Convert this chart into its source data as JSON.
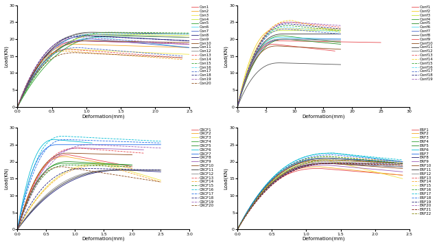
{
  "subplots": [
    {
      "xlabel": "Deformation(mm)",
      "ylabel": "Load(KN)",
      "xlim": [
        0,
        2.5
      ],
      "ylim": [
        0,
        30
      ],
      "xticks": [
        0,
        0.5,
        1.0,
        1.5,
        2.0,
        2.5
      ],
      "yticks": [
        0,
        5,
        10,
        15,
        20,
        25,
        30
      ],
      "series": [
        {
          "label": "Con1",
          "color": "#e8474c",
          "ls": "-",
          "peak_x": 0.95,
          "peak_y": 19.5,
          "end_x": 2.5,
          "end_y": 18.5
        },
        {
          "label": "Con2",
          "color": "#f5a623",
          "ls": "-",
          "peak_x": 0.85,
          "peak_y": 18.5,
          "end_x": 2.5,
          "end_y": 17.5
        },
        {
          "label": "Con3",
          "color": "#f0e442",
          "ls": "-",
          "peak_x": 0.8,
          "peak_y": 17.0,
          "end_x": 2.5,
          "end_y": 15.5
        },
        {
          "label": "Con4",
          "color": "#c8e632",
          "ls": "-",
          "peak_x": 1.3,
          "peak_y": 21.5,
          "end_x": 2.5,
          "end_y": 21.0
        },
        {
          "label": "Con5",
          "color": "#2ca02c",
          "ls": "-",
          "peak_x": 1.4,
          "peak_y": 21.0,
          "end_x": 2.5,
          "end_y": 20.5
        },
        {
          "label": "Con6",
          "color": "#4dd8f0",
          "ls": "-",
          "peak_x": 1.2,
          "peak_y": 20.5,
          "end_x": 2.5,
          "end_y": 17.5
        },
        {
          "label": "Con7",
          "color": "#4466cc",
          "ls": "-",
          "peak_x": 1.1,
          "peak_y": 20.0,
          "end_x": 2.5,
          "end_y": 17.5
        },
        {
          "label": "Con8",
          "color": "#1a1a7a",
          "ls": "-",
          "peak_x": 1.05,
          "peak_y": 21.0,
          "end_x": 2.5,
          "end_y": 19.5
        },
        {
          "label": "Con9",
          "color": "#9b59b6",
          "ls": "-",
          "peak_x": 0.9,
          "peak_y": 19.5,
          "end_x": 2.5,
          "end_y": 18.5
        },
        {
          "label": "Con10",
          "color": "#8b4513",
          "ls": "-",
          "peak_x": 1.05,
          "peak_y": 19.5,
          "end_x": 2.5,
          "end_y": 19.0
        },
        {
          "label": "Con11",
          "color": "#333333",
          "ls": "-",
          "peak_x": 1.1,
          "peak_y": 22.0,
          "end_x": 2.5,
          "end_y": 21.5
        },
        {
          "label": "Con12",
          "color": "#888888",
          "ls": "-",
          "peak_x": 1.0,
          "peak_y": 21.5,
          "end_x": 2.5,
          "end_y": 20.5
        },
        {
          "label": "Con13",
          "color": "#e8474c",
          "ls": "--",
          "peak_x": 0.75,
          "peak_y": 17.0,
          "end_x": 2.4,
          "end_y": 14.5
        },
        {
          "label": "Con14",
          "color": "#f5a623",
          "ls": "--",
          "peak_x": 0.7,
          "peak_y": 16.5,
          "end_x": 2.4,
          "end_y": 14.0
        },
        {
          "label": "Con15",
          "color": "#2ca02c",
          "ls": "--",
          "peak_x": 1.35,
          "peak_y": 22.0,
          "end_x": 2.5,
          "end_y": 21.8
        },
        {
          "label": "Con16",
          "color": "#4dd8f0",
          "ls": "--",
          "peak_x": 1.15,
          "peak_y": 21.5,
          "end_x": 2.5,
          "end_y": 21.5
        },
        {
          "label": "Con17",
          "color": "#4466cc",
          "ls": "--",
          "peak_x": 0.9,
          "peak_y": 17.5,
          "end_x": 2.4,
          "end_y": 15.0
        },
        {
          "label": "Con18",
          "color": "#1a1a7a",
          "ls": "--",
          "peak_x": 0.95,
          "peak_y": 21.0,
          "end_x": 2.5,
          "end_y": 19.5
        },
        {
          "label": "Con19",
          "color": "#9b59b6",
          "ls": "--",
          "peak_x": 0.9,
          "peak_y": 20.5,
          "end_x": 2.5,
          "end_y": 18.5
        },
        {
          "label": "Con20",
          "color": "#8b4513",
          "ls": "--",
          "peak_x": 0.85,
          "peak_y": 16.0,
          "end_x": 2.4,
          "end_y": 14.5
        }
      ]
    },
    {
      "xlabel": "Deformation(mm)",
      "ylabel": "Load(KN)",
      "xlim": [
        0,
        30
      ],
      "ylim": [
        0,
        30
      ],
      "xticks": [
        0,
        5,
        10,
        15,
        20,
        25,
        30
      ],
      "yticks": [
        0,
        5,
        10,
        15,
        20,
        25,
        30
      ],
      "series": [
        {
          "label": "Conf1",
          "color": "#e8474c",
          "ls": "-",
          "peak_x": 7.0,
          "peak_y": 19.5,
          "end_x": 25.0,
          "end_y": 19.0
        },
        {
          "label": "Conf2",
          "color": "#f5d020",
          "ls": "-",
          "peak_x": 7.0,
          "peak_y": 23.0,
          "end_x": 18.0,
          "end_y": 23.0
        },
        {
          "label": "Conf3",
          "color": "#c8e632",
          "ls": "-",
          "peak_x": 7.5,
          "peak_y": 22.5,
          "end_x": 18.0,
          "end_y": 22.5
        },
        {
          "label": "Conf4",
          "color": "#2ca02c",
          "ls": "-",
          "peak_x": 8.0,
          "peak_y": 21.0,
          "end_x": 18.0,
          "end_y": 19.0
        },
        {
          "label": "Conf5",
          "color": "#228b22",
          "ls": "-",
          "peak_x": 8.5,
          "peak_y": 20.0,
          "end_x": 18.0,
          "end_y": 18.5
        },
        {
          "label": "Conf6",
          "color": "#4dd8f0",
          "ls": "-",
          "peak_x": 7.5,
          "peak_y": 20.5,
          "end_x": 18.0,
          "end_y": 20.0
        },
        {
          "label": "Conf7",
          "color": "#4466cc",
          "ls": "-",
          "peak_x": 8.0,
          "peak_y": 20.0,
          "end_x": 18.0,
          "end_y": 20.0
        },
        {
          "label": "Conf8",
          "color": "#555555",
          "ls": "-",
          "peak_x": 7.5,
          "peak_y": 13.0,
          "end_x": 18.0,
          "end_y": 12.5
        },
        {
          "label": "Conf9",
          "color": "#e8474c",
          "ls": "-",
          "peak_x": 6.5,
          "peak_y": 18.5,
          "end_x": 17.0,
          "end_y": 16.5
        },
        {
          "label": "Conf10",
          "color": "#8b4513",
          "ls": "-",
          "peak_x": 7.0,
          "peak_y": 18.0,
          "end_x": 18.0,
          "end_y": 17.0
        },
        {
          "label": "Conf11",
          "color": "#333333",
          "ls": "-",
          "peak_x": 8.0,
          "peak_y": 21.5,
          "end_x": 18.0,
          "end_y": 21.5
        },
        {
          "label": "Conf12",
          "color": "#888888",
          "ls": "-",
          "peak_x": 7.5,
          "peak_y": 20.0,
          "end_x": 18.0,
          "end_y": 19.5
        },
        {
          "label": "Conf13",
          "color": "#e8474c",
          "ls": "--",
          "peak_x": 9.0,
          "peak_y": 25.0,
          "end_x": 18.0,
          "end_y": 23.5
        },
        {
          "label": "Conf14",
          "color": "#f5d020",
          "ls": "--",
          "peak_x": 9.5,
          "peak_y": 25.5,
          "end_x": 18.0,
          "end_y": 22.0
        },
        {
          "label": "Conf15",
          "color": "#2ca02c",
          "ls": "--",
          "peak_x": 9.0,
          "peak_y": 24.0,
          "end_x": 18.0,
          "end_y": 22.5
        },
        {
          "label": "Conf16",
          "color": "#4dd8f0",
          "ls": "--",
          "peak_x": 8.5,
          "peak_y": 23.5,
          "end_x": 18.0,
          "end_y": 22.0
        },
        {
          "label": "Conf17",
          "color": "#4466cc",
          "ls": "--",
          "peak_x": 8.5,
          "peak_y": 23.0,
          "end_x": 18.0,
          "end_y": 21.5
        },
        {
          "label": "Conf18",
          "color": "#1a1a7a",
          "ls": "--",
          "peak_x": 9.0,
          "peak_y": 24.5,
          "end_x": 18.0,
          "end_y": 23.0
        },
        {
          "label": "Conf19",
          "color": "#9b59b6",
          "ls": "--",
          "peak_x": 9.5,
          "peak_y": 25.0,
          "end_x": 18.0,
          "end_y": 24.0
        }
      ]
    },
    {
      "xlabel": "Deformation(mm)",
      "ylabel": "Load(KN)",
      "xlim": [
        0,
        3
      ],
      "ylim": [
        0,
        30
      ],
      "xticks": [
        0,
        0.5,
        1.0,
        1.5,
        2.0,
        2.5,
        3.0
      ],
      "yticks": [
        0,
        5,
        10,
        15,
        20,
        25,
        30
      ],
      "series": [
        {
          "label": "CRCF1",
          "color": "#e8474c",
          "ls": "-",
          "peak_x": 0.9,
          "peak_y": 22.0,
          "end_x": 2.0,
          "end_y": 18.5
        },
        {
          "label": "CRCF2",
          "color": "#f5a623",
          "ls": "-",
          "peak_x": 0.85,
          "peak_y": 21.5,
          "end_x": 2.0,
          "end_y": 18.0
        },
        {
          "label": "CRCF3",
          "color": "#f0e442",
          "ls": "-",
          "peak_x": 1.5,
          "peak_y": 19.5,
          "end_x": 2.5,
          "end_y": 14.5
        },
        {
          "label": "CRCF4",
          "color": "#2ca02c",
          "ls": "-",
          "peak_x": 0.85,
          "peak_y": 19.5,
          "end_x": 2.0,
          "end_y": 19.0
        },
        {
          "label": "CRCF5",
          "color": "#228b22",
          "ls": "-",
          "peak_x": 0.9,
          "peak_y": 20.0,
          "end_x": 2.0,
          "end_y": 19.0
        },
        {
          "label": "CRCF6",
          "color": "#00bcd4",
          "ls": "-",
          "peak_x": 0.65,
          "peak_y": 26.5,
          "end_x": 1.3,
          "end_y": 25.5
        },
        {
          "label": "CRCF7",
          "color": "#1a6ae8",
          "ls": "-",
          "peak_x": 0.7,
          "peak_y": 25.0,
          "end_x": 2.5,
          "end_y": 25.0
        },
        {
          "label": "CRCF8",
          "color": "#1a1a7a",
          "ls": "-",
          "peak_x": 1.9,
          "peak_y": 17.5,
          "end_x": 2.5,
          "end_y": 17.0
        },
        {
          "label": "CRCF9",
          "color": "#9b59b6",
          "ls": "-",
          "peak_x": 1.1,
          "peak_y": 24.0,
          "end_x": 2.2,
          "end_y": 23.5
        },
        {
          "label": "CRCF10",
          "color": "#8b4513",
          "ls": "-",
          "peak_x": 0.9,
          "peak_y": 22.5,
          "end_x": 2.0,
          "end_y": 22.0
        },
        {
          "label": "CRCF11",
          "color": "#333333",
          "ls": "-",
          "peak_x": 1.8,
          "peak_y": 17.5,
          "end_x": 2.5,
          "end_y": 17.5
        },
        {
          "label": "CRCF12",
          "color": "#888888",
          "ls": "-",
          "peak_x": 1.7,
          "peak_y": 17.5,
          "end_x": 2.5,
          "end_y": 17.5
        },
        {
          "label": "CRCF13",
          "color": "#e8474c",
          "ls": "--",
          "peak_x": 1.05,
          "peak_y": 24.0,
          "end_x": 2.2,
          "end_y": 22.5
        },
        {
          "label": "CRCF14",
          "color": "#f5a623",
          "ls": "--",
          "peak_x": 1.5,
          "peak_y": 19.0,
          "end_x": 2.5,
          "end_y": 14.0
        },
        {
          "label": "CRCF15",
          "color": "#228b22",
          "ls": "--",
          "peak_x": 0.9,
          "peak_y": 19.0,
          "end_x": 2.0,
          "end_y": 18.5
        },
        {
          "label": "CRCF16",
          "color": "#00bcd4",
          "ls": "--",
          "peak_x": 0.8,
          "peak_y": 27.5,
          "end_x": 2.5,
          "end_y": 26.0
        },
        {
          "label": "CRCF17",
          "color": "#1a6ae8",
          "ls": "--",
          "peak_x": 0.85,
          "peak_y": 26.5,
          "end_x": 2.5,
          "end_y": 25.5
        },
        {
          "label": "CRCF18",
          "color": "#1a1a7a",
          "ls": "--",
          "peak_x": 1.2,
          "peak_y": 18.0,
          "end_x": 2.5,
          "end_y": 17.5
        },
        {
          "label": "CRCF19",
          "color": "#9b59b6",
          "ls": "--",
          "peak_x": 1.3,
          "peak_y": 25.0,
          "end_x": 2.5,
          "end_y": 24.0
        },
        {
          "label": "CRCF20",
          "color": "#8b4513",
          "ls": "--",
          "peak_x": 0.8,
          "peak_y": 18.5,
          "end_x": 2.5,
          "end_y": 14.0
        }
      ]
    },
    {
      "xlabel": "Deformation(mm)",
      "ylabel": "Load(KN)",
      "xlim": [
        0,
        2.5
      ],
      "ylim": [
        0,
        30
      ],
      "xticks": [
        0,
        0.5,
        1.0,
        1.5,
        2.0,
        2.5
      ],
      "yticks": [
        0,
        5,
        10,
        15,
        20,
        25,
        30
      ],
      "series": [
        {
          "label": "ERF1",
          "color": "#e8474c",
          "ls": "-",
          "peak_x": 1.2,
          "peak_y": 18.0,
          "end_x": 2.4,
          "end_y": 16.0
        },
        {
          "label": "ERF2",
          "color": "#f5a623",
          "ls": "-",
          "peak_x": 1.2,
          "peak_y": 18.5,
          "end_x": 2.4,
          "end_y": 16.0
        },
        {
          "label": "ERF3",
          "color": "#f0e442",
          "ls": "-",
          "peak_x": 1.3,
          "peak_y": 20.5,
          "end_x": 2.4,
          "end_y": 15.0
        },
        {
          "label": "ERF4",
          "color": "#2ca02c",
          "ls": "-",
          "peak_x": 1.3,
          "peak_y": 20.0,
          "end_x": 2.4,
          "end_y": 19.0
        },
        {
          "label": "ERF5",
          "color": "#228b22",
          "ls": "-",
          "peak_x": 1.3,
          "peak_y": 20.5,
          "end_x": 2.4,
          "end_y": 19.5
        },
        {
          "label": "ERF6",
          "color": "#00bcd4",
          "ls": "-",
          "peak_x": 1.4,
          "peak_y": 22.5,
          "end_x": 2.4,
          "end_y": 20.0
        },
        {
          "label": "ERF7",
          "color": "#1a6ae8",
          "ls": "-",
          "peak_x": 1.3,
          "peak_y": 21.0,
          "end_x": 2.4,
          "end_y": 20.0
        },
        {
          "label": "ERF8",
          "color": "#191970",
          "ls": "-",
          "peak_x": 1.3,
          "peak_y": 19.5,
          "end_x": 2.4,
          "end_y": 18.5
        },
        {
          "label": "ERF9",
          "color": "#9b59b6",
          "ls": "-",
          "peak_x": 1.3,
          "peak_y": 19.0,
          "end_x": 2.4,
          "end_y": 17.0
        },
        {
          "label": "ERF10",
          "color": "#8b4513",
          "ls": "-",
          "peak_x": 1.3,
          "peak_y": 19.5,
          "end_x": 2.4,
          "end_y": 18.0
        },
        {
          "label": "ERF11",
          "color": "#333333",
          "ls": "-",
          "peak_x": 1.35,
          "peak_y": 21.0,
          "end_x": 2.4,
          "end_y": 19.5
        },
        {
          "label": "ERF12",
          "color": "#888888",
          "ls": "-",
          "peak_x": 1.35,
          "peak_y": 19.5,
          "end_x": 2.4,
          "end_y": 18.5
        },
        {
          "label": "ERF13",
          "color": "#e8474c",
          "ls": "--",
          "peak_x": 1.3,
          "peak_y": 20.5,
          "end_x": 2.4,
          "end_y": 19.5
        },
        {
          "label": "ERF14",
          "color": "#f5a623",
          "ls": "--",
          "peak_x": 1.35,
          "peak_y": 21.5,
          "end_x": 2.4,
          "end_y": 20.0
        },
        {
          "label": "ERF15",
          "color": "#f0e442",
          "ls": "--",
          "peak_x": 1.3,
          "peak_y": 20.0,
          "end_x": 2.4,
          "end_y": 19.0
        },
        {
          "label": "ERF16",
          "color": "#2ca02c",
          "ls": "--",
          "peak_x": 1.35,
          "peak_y": 21.5,
          "end_x": 2.4,
          "end_y": 19.5
        },
        {
          "label": "ERF17",
          "color": "#00bcd4",
          "ls": "--",
          "peak_x": 1.4,
          "peak_y": 22.5,
          "end_x": 2.4,
          "end_y": 20.5
        },
        {
          "label": "ERF18",
          "color": "#1a6ae8",
          "ls": "--",
          "peak_x": 1.4,
          "peak_y": 22.0,
          "end_x": 2.4,
          "end_y": 20.0
        },
        {
          "label": "ERF19",
          "color": "#191970",
          "ls": "--",
          "peak_x": 1.35,
          "peak_y": 19.5,
          "end_x": 2.4,
          "end_y": 19.5
        },
        {
          "label": "ERF20",
          "color": "#9b59b6",
          "ls": "--",
          "peak_x": 1.35,
          "peak_y": 20.0,
          "end_x": 2.4,
          "end_y": 19.0
        },
        {
          "label": "ERF21",
          "color": "#800000",
          "ls": "--",
          "peak_x": 1.4,
          "peak_y": 19.5,
          "end_x": 2.4,
          "end_y": 19.0
        },
        {
          "label": "ERF22",
          "color": "#808000",
          "ls": "--",
          "peak_x": 1.4,
          "peak_y": 20.5,
          "end_x": 2.4,
          "end_y": 19.5
        }
      ]
    }
  ],
  "figure_bg": "#ffffff",
  "axes_bg": "#ffffff",
  "legend_fontsize": 4,
  "tick_fontsize": 4.5,
  "label_fontsize": 5
}
